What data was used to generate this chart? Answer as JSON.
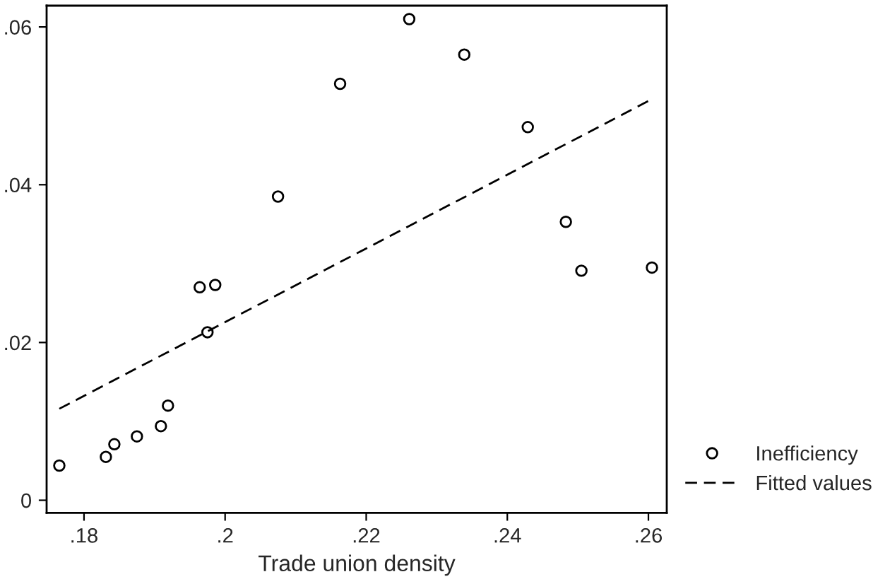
{
  "chart_data": {
    "type": "scatter",
    "xlabel": "Trade union density",
    "xlim": [
      0.1747,
      0.2626
    ],
    "xticks": [
      {
        "value": 0.18,
        "label": ".18"
      },
      {
        "value": 0.2,
        "label": ".2"
      },
      {
        "value": 0.22,
        "label": ".22"
      },
      {
        "value": 0.24,
        "label": ".24"
      },
      {
        "value": 0.26,
        "label": ".26"
      }
    ],
    "ylim": [
      -0.0016,
      0.0627
    ],
    "yticks": [
      {
        "value": 0,
        "label": "0"
      },
      {
        "value": 0.02,
        "label": ".02"
      },
      {
        "value": 0.04,
        "label": ".04"
      },
      {
        "value": 0.06,
        "label": ".06"
      }
    ],
    "grid": false,
    "legend": "bottom right",
    "series": [
      {
        "name": "Inefficiency",
        "color": "#000000",
        "marker": "circle",
        "x": [
          0.1765,
          0.1831,
          0.1843,
          0.1875,
          0.1909,
          0.1919,
          0.1964,
          0.1986,
          0.1975,
          0.2075,
          0.2163,
          0.2261,
          0.2339,
          0.2429,
          0.2483,
          0.2505,
          0.2605
        ],
        "values": [
          0.0044,
          0.0055,
          0.0071,
          0.0081,
          0.0094,
          0.012,
          0.027,
          0.0273,
          0.0213,
          0.0385,
          0.0528,
          0.061,
          0.0565,
          0.0473,
          0.0353,
          0.0291,
          0.0295
        ]
      },
      {
        "name": "Fitted values",
        "type": "line",
        "color": "#000000",
        "line_style": "dashed",
        "x": [
          0.1765,
          0.2604
        ],
        "values": [
          0.0116,
          0.0508
        ]
      }
    ]
  }
}
